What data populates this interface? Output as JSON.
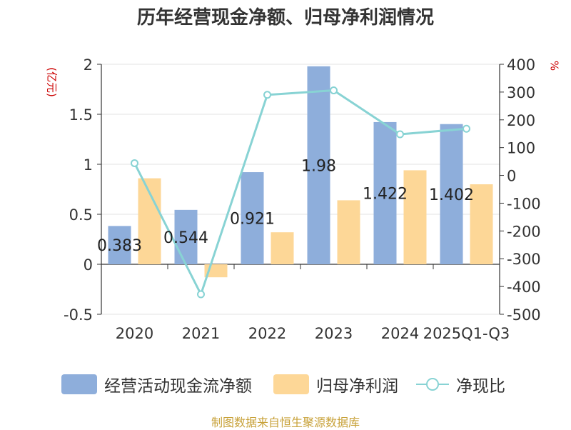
{
  "title": "历年经营现金净额、归母净利润情况",
  "source": "制图数据来自恒生聚源数据库",
  "colors": {
    "cash_flow": "#8eaedb",
    "net_profit": "#fdd797",
    "ratio": "#88d3d4",
    "unit_label": "#cc0000"
  },
  "legend": [
    {
      "label": "经营活动现金流净额",
      "kind": "bar",
      "color": "#8eaedb"
    },
    {
      "label": "归母净利润",
      "kind": "bar",
      "color": "#fdd797"
    },
    {
      "label": "净现比",
      "kind": "line",
      "color": "#88d3d4"
    }
  ],
  "chart_data": {
    "type": "bar",
    "title": "历年经营现金净额、归母净利润情况",
    "categories": [
      "2020",
      "2021",
      "2022",
      "2023",
      "2024",
      "2025Q1-Q3"
    ],
    "series": [
      {
        "name": "经营活动现金流净额",
        "type": "bar",
        "axis": "left",
        "values": [
          0.383,
          0.544,
          0.921,
          1.98,
          1.422,
          1.402
        ],
        "data_labels": [
          "0.383",
          "0.544",
          "0.921",
          "1.98",
          "1.422",
          "1.402"
        ]
      },
      {
        "name": "归母净利润",
        "type": "bar",
        "axis": "left",
        "values": [
          0.86,
          -0.13,
          0.32,
          0.64,
          0.94,
          0.8
        ]
      },
      {
        "name": "净现比",
        "type": "line",
        "axis": "right",
        "values": [
          44,
          -428,
          290,
          306,
          148,
          168
        ]
      }
    ],
    "y_left": {
      "label": "(亿元)",
      "ylim": [
        -0.5,
        2
      ],
      "ticks": [
        "-0.5",
        "0",
        "0.5",
        "1",
        "1.5",
        "2"
      ]
    },
    "y_right": {
      "label": "%",
      "ylim": [
        -500,
        400
      ],
      "ticks": [
        "-500",
        "-400",
        "-300",
        "-200",
        "-100",
        "0",
        "100",
        "200",
        "300",
        "400"
      ]
    },
    "grid": true,
    "legend_position": "bottom"
  }
}
